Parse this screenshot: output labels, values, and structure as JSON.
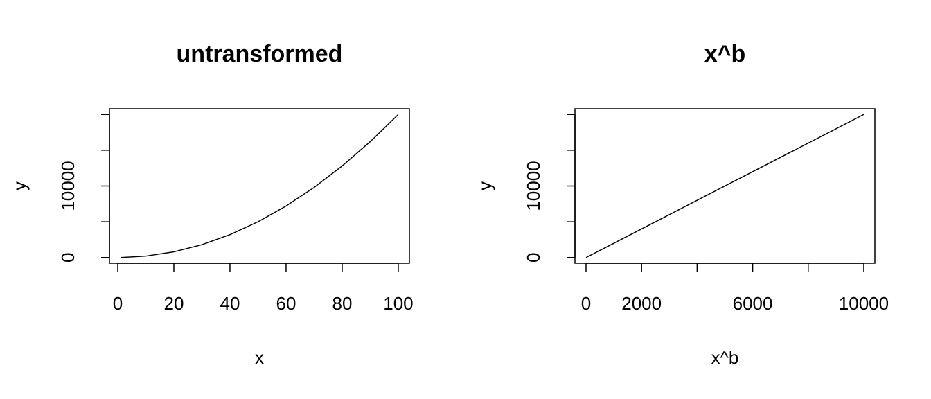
{
  "chart_data": [
    {
      "type": "line",
      "title": "untransformed",
      "xlabel": "x",
      "ylabel": "y",
      "x": [
        1,
        10,
        20,
        30,
        40,
        50,
        60,
        70,
        80,
        90,
        100
      ],
      "values": [
        2,
        200,
        800,
        1800,
        3200,
        5000,
        7200,
        9800,
        12800,
        16200,
        20000
      ],
      "color": "#000000",
      "xlim": [
        -2.96,
        103.96
      ],
      "ylim": [
        -798,
        20798
      ],
      "xticks": [
        0,
        20,
        40,
        60,
        80,
        100
      ],
      "xticks_unlabeled": [],
      "yticks": [
        0,
        10000
      ],
      "yticks_unlabeled": [
        5000,
        15000,
        20000
      ]
    },
    {
      "type": "line",
      "title": "x^b",
      "xlabel": "x^b",
      "ylabel": "y",
      "x": [
        1,
        10000
      ],
      "values": [
        2,
        20000
      ],
      "color": "#000000",
      "xlim": [
        -399,
        10400
      ],
      "ylim": [
        -798,
        20798
      ],
      "xticks": [
        0,
        2000,
        6000,
        10000
      ],
      "xticks_unlabeled": [
        4000,
        8000
      ],
      "yticks": [
        0,
        10000
      ],
      "yticks_unlabeled": [
        5000,
        15000,
        20000
      ]
    }
  ]
}
